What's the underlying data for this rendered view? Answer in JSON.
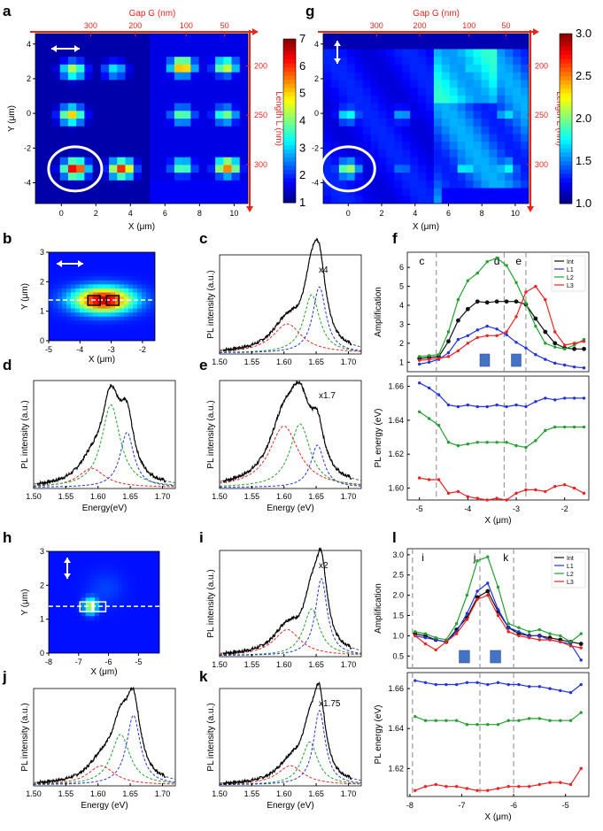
{
  "panel_letters": {
    "a": "a",
    "g": "g",
    "b": "b",
    "c": "c",
    "f": "f",
    "d": "d",
    "e": "e",
    "h": "h",
    "i": "i",
    "l": "l",
    "j": "j",
    "k": "k"
  },
  "colors": {
    "jet": [
      "#00007f",
      "#0000ff",
      "#007fff",
      "#00ffff",
      "#7fff7f",
      "#ffff00",
      "#ff7f00",
      "#ff0000",
      "#7f0000"
    ],
    "black": "#111111",
    "blue": "#2233dd",
    "green": "#22a030",
    "red": "#ee2222",
    "accent_red": "#e8251d",
    "highlight_blue": "#4472c4"
  },
  "chart_data": [
    {
      "id": "a",
      "type": "heatmap",
      "title": "",
      "xlabel": "X (μm)",
      "ylabel": "Y (μm)",
      "top_axis": {
        "label": "Gap G (nm)",
        "ticks": [
          "300",
          "200",
          "100",
          "50"
        ]
      },
      "right_axis": {
        "label": "Length L (nm)",
        "ticks": [
          "200",
          "250",
          "300"
        ]
      },
      "xticks": [
        "0",
        "2",
        "4",
        "6",
        "8",
        "10"
      ],
      "yticks": [
        "4",
        "2",
        "0",
        "-2",
        "-4"
      ],
      "xlim": [
        -1.5,
        10.8
      ],
      "ylim": [
        -5.2,
        4.6
      ],
      "colorbar": {
        "min": 1,
        "max": 7,
        "ticks": [
          "7",
          "6",
          "5",
          "4",
          "3",
          "2",
          "1"
        ]
      },
      "spots": [
        {
          "x": 0.8,
          "y": -3.2,
          "v": 6.5
        },
        {
          "x": 3.5,
          "y": -3.2,
          "v": 6.0
        },
        {
          "x": 0.6,
          "y": -0.1,
          "v": 5.0
        },
        {
          "x": 0.7,
          "y": 2.5,
          "v": 4.4
        },
        {
          "x": 3.1,
          "y": 2.5,
          "v": 3.2
        },
        {
          "x": 7.0,
          "y": 2.7,
          "v": 5.6
        },
        {
          "x": 9.5,
          "y": 2.7,
          "v": 4.6
        },
        {
          "x": 7.0,
          "y": -0.1,
          "v": 4.0
        },
        {
          "x": 9.5,
          "y": -0.1,
          "v": 4.0
        },
        {
          "x": 7.0,
          "y": -3.1,
          "v": 4.0
        },
        {
          "x": 9.6,
          "y": -3.1,
          "v": 5.6
        }
      ],
      "circle": {
        "x": 0.8,
        "y": -3.2
      }
    },
    {
      "id": "g",
      "type": "heatmap",
      "title": "",
      "xlabel": "X (μm)",
      "ylabel": "",
      "top_axis": {
        "label": "Gap G (nm)",
        "ticks": [
          "300",
          "200",
          "100",
          "50"
        ]
      },
      "right_axis": {
        "label": "Length L (nm)",
        "ticks": [
          "200",
          "250",
          "300"
        ]
      },
      "xticks": [
        "0",
        "2",
        "4",
        "6",
        "8",
        "10"
      ],
      "yticks": [
        "4",
        "2",
        "0",
        "-2",
        "-4"
      ],
      "xlim": [
        -1.5,
        10.8
      ],
      "ylim": [
        -5.2,
        4.6
      ],
      "colorbar": {
        "min": 1.0,
        "max": 3.0,
        "ticks": [
          "3.0",
          "2.5",
          "2.0",
          "1.5",
          "1.0"
        ]
      },
      "spots": [
        {
          "x": 0.0,
          "y": -3.2,
          "v": 2.1
        },
        {
          "x": 0.0,
          "y": -0.1,
          "v": 1.8
        },
        {
          "x": 3.2,
          "y": -0.1,
          "v": 1.6
        },
        {
          "x": 3.2,
          "y": -3.2,
          "v": 1.5
        },
        {
          "x": 7.2,
          "y": 2.7,
          "v": 1.7
        },
        {
          "x": 8.6,
          "y": 1.7,
          "v": 1.7
        },
        {
          "x": 9.5,
          "y": -0.1,
          "v": 1.7
        },
        {
          "x": 7.0,
          "y": -3.1,
          "v": 1.8
        },
        {
          "x": 9.5,
          "y": -3.1,
          "v": 1.8
        }
      ],
      "circle": {
        "x": 0.0,
        "y": -3.2
      }
    },
    {
      "id": "b",
      "type": "heatmap",
      "xlabel": "X (μm)",
      "ylabel": "Y (μm)",
      "xticks": [
        "-5",
        "-4",
        "-3",
        "-2"
      ],
      "yticks": [
        "3",
        "2",
        "1",
        "0"
      ],
      "xlim": [
        -5,
        -1.6
      ],
      "ylim": [
        0,
        3
      ],
      "spot": {
        "x": -3.25,
        "y": 1.38,
        "v": 0.95
      },
      "line_y": 1.38,
      "boxes": [
        {
          "x": -3.55,
          "y": 1.38
        },
        {
          "x": -2.95,
          "y": 1.38
        }
      ]
    },
    {
      "id": "h",
      "type": "heatmap",
      "xlabel": "X (μm)",
      "ylabel": "Y (μm)",
      "xticks": [
        "-8",
        "-7",
        "-6",
        "-5"
      ],
      "yticks": [
        "3",
        "2",
        "1",
        "0"
      ],
      "xlim": [
        -8,
        -4.3
      ],
      "ylim": [
        0,
        3
      ],
      "spot": {
        "x": -6.6,
        "y": 1.38,
        "v": 0.6
      },
      "line_y": 1.38,
      "boxes": [
        {
          "x": -6.75,
          "y": 1.38
        },
        {
          "x": -6.3,
          "y": 1.38
        }
      ]
    },
    {
      "id": "c",
      "type": "line",
      "xlabel": "",
      "ylabel": "PL intensity (a.u.)",
      "xticks": [
        "1.50",
        "1.55",
        "1.60",
        "1.65",
        "1.70"
      ],
      "xlim": [
        1.5,
        1.72
      ],
      "annotation": "x4",
      "peaks": [
        {
          "c": 1.605,
          "a": 0.3,
          "w": 0.055,
          "color": "red"
        },
        {
          "c": 1.643,
          "a": 0.6,
          "w": 0.03,
          "color": "green"
        },
        {
          "c": 1.655,
          "a": 0.68,
          "w": 0.025,
          "color": "blue"
        }
      ]
    },
    {
      "id": "d",
      "type": "line",
      "xlabel": "Energy(eV)",
      "ylabel": "PL intensity (a.u.)",
      "xticks": [
        "1.50",
        "1.55",
        "1.60",
        "1.65",
        "1.70"
      ],
      "xlim": [
        1.5,
        1.72
      ],
      "annotation": "",
      "peaks": [
        {
          "c": 1.59,
          "a": 0.18,
          "w": 0.05,
          "color": "red"
        },
        {
          "c": 1.62,
          "a": 0.78,
          "w": 0.035,
          "color": "green"
        },
        {
          "c": 1.645,
          "a": 0.52,
          "w": 0.026,
          "color": "blue"
        }
      ]
    },
    {
      "id": "e",
      "type": "line",
      "xlabel": "Energy (eV)",
      "ylabel": "PL intensity (a.u.)",
      "xticks": [
        "1.50",
        "1.55",
        "1.60",
        "1.65",
        "1.70"
      ],
      "xlim": [
        1.5,
        1.72
      ],
      "annotation": "x1.7",
      "peaks": [
        {
          "c": 1.6,
          "a": 0.58,
          "w": 0.055,
          "color": "red"
        },
        {
          "c": 1.625,
          "a": 0.6,
          "w": 0.038,
          "color": "green"
        },
        {
          "c": 1.652,
          "a": 0.4,
          "w": 0.025,
          "color": "blue"
        }
      ]
    },
    {
      "id": "i",
      "type": "line",
      "xlabel": "",
      "ylabel": "PL intensity (a.u.)",
      "xticks": [
        "1.50",
        "1.55",
        "1.60",
        "1.65",
        "1.70"
      ],
      "xlim": [
        1.5,
        1.72
      ],
      "annotation": "x2",
      "peaks": [
        {
          "c": 1.605,
          "a": 0.25,
          "w": 0.05,
          "color": "red"
        },
        {
          "c": 1.643,
          "a": 0.45,
          "w": 0.03,
          "color": "green"
        },
        {
          "c": 1.658,
          "a": 0.74,
          "w": 0.022,
          "color": "blue"
        }
      ]
    },
    {
      "id": "j",
      "type": "line",
      "xlabel": "Energy (eV)",
      "ylabel": "PL intensity (a.u.)",
      "xticks": [
        "1.50",
        "1.55",
        "1.60",
        "1.65",
        "1.70"
      ],
      "xlim": [
        1.5,
        1.72
      ],
      "annotation": "",
      "peaks": [
        {
          "c": 1.605,
          "a": 0.2,
          "w": 0.05,
          "color": "red"
        },
        {
          "c": 1.635,
          "a": 0.53,
          "w": 0.035,
          "color": "green"
        },
        {
          "c": 1.655,
          "a": 0.73,
          "w": 0.026,
          "color": "blue"
        }
      ]
    },
    {
      "id": "k",
      "type": "line",
      "xlabel": "Energy (eV)",
      "ylabel": "PL intensity (a.u.)",
      "xticks": [
        "1.50",
        "1.55",
        "1.60",
        "1.65",
        "1.70"
      ],
      "xlim": [
        1.5,
        1.72
      ],
      "annotation": "x1.75",
      "peaks": [
        {
          "c": 1.61,
          "a": 0.2,
          "w": 0.05,
          "color": "red"
        },
        {
          "c": 1.64,
          "a": 0.45,
          "w": 0.03,
          "color": "green"
        },
        {
          "c": 1.655,
          "a": 0.78,
          "w": 0.022,
          "color": "blue"
        }
      ]
    },
    {
      "id": "f_top",
      "type": "line",
      "xlabel": "",
      "ylabel": "Amplification",
      "yticks": [
        "1",
        "2",
        "3",
        "4",
        "5",
        "6"
      ],
      "ylim": [
        0.5,
        6.8
      ],
      "xlim": [
        -5.25,
        -1.5
      ],
      "x": [
        -5.0,
        -4.8,
        -4.6,
        -4.4,
        -4.2,
        -4.0,
        -3.8,
        -3.6,
        -3.4,
        -3.2,
        -3.0,
        -2.8,
        -2.6,
        -2.4,
        -2.2,
        -2.0,
        -1.8,
        -1.6
      ],
      "series": [
        {
          "name": "Int",
          "color": "black",
          "values": [
            1.2,
            1.25,
            1.3,
            2.1,
            3.2,
            3.8,
            4.2,
            4.15,
            4.2,
            4.2,
            4.2,
            4.05,
            3.3,
            2.6,
            2.0,
            1.75,
            1.7,
            1.7
          ]
        },
        {
          "name": "L1",
          "color": "blue",
          "values": [
            0.9,
            1.0,
            1.15,
            1.5,
            2.2,
            2.4,
            2.7,
            2.9,
            2.75,
            2.45,
            2.05,
            1.75,
            1.4,
            1.15,
            0.95,
            0.85,
            0.75,
            0.7
          ]
        },
        {
          "name": "L2",
          "color": "green",
          "values": [
            1.3,
            1.35,
            1.4,
            2.6,
            4.3,
            5.3,
            5.7,
            6.3,
            6.5,
            6.1,
            5.2,
            4.1,
            2.9,
            2.0,
            1.8,
            1.7,
            1.9,
            2.2
          ]
        },
        {
          "name": "L3",
          "color": "red",
          "values": [
            1.1,
            1.15,
            1.2,
            1.3,
            1.6,
            2.0,
            2.3,
            2.4,
            2.4,
            2.6,
            3.4,
            4.7,
            5.0,
            4.3,
            2.6,
            1.9,
            2.0,
            2.1
          ]
        }
      ],
      "labels": [
        {
          "text": "c",
          "x": -4.95
        },
        {
          "text": "d",
          "x": -3.4
        },
        {
          "text": "e",
          "x": -2.95
        }
      ],
      "dashed_x": [
        -4.65,
        -3.25,
        -2.8
      ],
      "blocks": [
        {
          "x0": -3.75,
          "x1": -3.55
        },
        {
          "x0": -3.1,
          "x1": -2.9
        }
      ]
    },
    {
      "id": "f_bottom",
      "type": "line",
      "xlabel": "X (μm)",
      "ylabel": "PL energy (eV)",
      "xticks": [
        "-5",
        "-4",
        "-3",
        "-2"
      ],
      "yticks": [
        "1.60",
        "1.62",
        "1.64",
        "1.66"
      ],
      "xlim": [
        -5.25,
        -1.5
      ],
      "ylim": [
        1.593,
        1.666
      ],
      "x": [
        -5.0,
        -4.8,
        -4.6,
        -4.4,
        -4.2,
        -4.0,
        -3.8,
        -3.6,
        -3.4,
        -3.2,
        -3.0,
        -2.8,
        -2.6,
        -2.4,
        -2.2,
        -2.0,
        -1.8,
        -1.6
      ],
      "series": [
        {
          "name": "L1",
          "color": "blue",
          "values": [
            1.662,
            1.659,
            1.655,
            1.649,
            1.648,
            1.649,
            1.648,
            1.648,
            1.649,
            1.648,
            1.649,
            1.648,
            1.651,
            1.653,
            1.652,
            1.653,
            1.653,
            1.653
          ]
        },
        {
          "name": "L2",
          "color": "green",
          "values": [
            1.645,
            1.641,
            1.637,
            1.627,
            1.625,
            1.626,
            1.627,
            1.627,
            1.627,
            1.627,
            1.625,
            1.624,
            1.628,
            1.634,
            1.636,
            1.636,
            1.636,
            1.636
          ]
        },
        {
          "name": "L3",
          "color": "red",
          "values": [
            1.606,
            1.605,
            1.605,
            1.597,
            1.598,
            1.595,
            1.594,
            1.593,
            1.594,
            1.593,
            1.597,
            1.599,
            1.599,
            1.598,
            1.601,
            1.602,
            1.6,
            1.597
          ]
        }
      ],
      "dashed_x": [
        -4.65,
        -3.25,
        -2.8
      ]
    },
    {
      "id": "l_top",
      "type": "line",
      "xlabel": "",
      "ylabel": "Amplification",
      "yticks": [
        "0.5",
        "1.0",
        "1.5",
        "2.0",
        "2.5",
        "3.0"
      ],
      "ylim": [
        0.2,
        3.15
      ],
      "xlim": [
        -8.05,
        -4.55
      ],
      "x": [
        -7.9,
        -7.7,
        -7.5,
        -7.3,
        -7.1,
        -6.9,
        -6.7,
        -6.5,
        -6.3,
        -6.1,
        -5.9,
        -5.7,
        -5.5,
        -5.3,
        -5.1,
        -4.9,
        -4.7
      ],
      "series": [
        {
          "name": "Int",
          "color": "black",
          "values": [
            1.05,
            1.0,
            0.9,
            0.85,
            1.15,
            1.45,
            1.95,
            2.1,
            1.6,
            1.2,
            1.05,
            1.0,
            1.0,
            0.95,
            0.9,
            0.85,
            0.8
          ]
        },
        {
          "name": "L1",
          "color": "blue",
          "values": [
            1.0,
            0.95,
            0.9,
            0.85,
            1.1,
            1.55,
            2.1,
            2.3,
            1.65,
            1.2,
            1.1,
            1.0,
            1.0,
            0.9,
            0.85,
            0.8,
            0.4
          ]
        },
        {
          "name": "L2",
          "color": "green",
          "values": [
            1.1,
            1.05,
            0.95,
            0.9,
            1.3,
            2.0,
            2.85,
            2.95,
            2.2,
            1.3,
            1.2,
            1.1,
            1.15,
            1.05,
            1.0,
            0.85,
            1.05
          ]
        },
        {
          "name": "L3",
          "color": "red",
          "values": [
            1.0,
            0.8,
            0.65,
            0.85,
            1.05,
            1.4,
            1.9,
            2.0,
            1.5,
            1.1,
            1.0,
            0.95,
            0.9,
            0.9,
            0.85,
            0.75,
            0.7
          ]
        }
      ],
      "labels": [
        {
          "text": "i",
          "x": -7.75
        },
        {
          "text": "j",
          "x": -6.75
        },
        {
          "text": "k",
          "x": -6.15
        }
      ],
      "dashed_x": [
        -7.95,
        -6.65,
        -6.0
      ],
      "blocks": [
        {
          "x0": -7.05,
          "x1": -6.85
        },
        {
          "x0": -6.45,
          "x1": -6.25
        }
      ]
    },
    {
      "id": "l_bottom",
      "type": "line",
      "xlabel": "X (μm)",
      "ylabel": "PL energy (eV)",
      "xticks": [
        "-8",
        "-7",
        "-6",
        "-5"
      ],
      "yticks": [
        "1.62",
        "1.64",
        "1.66"
      ],
      "xlim": [
        -8.05,
        -4.55
      ],
      "ylim": [
        1.606,
        1.668
      ],
      "x": [
        -7.9,
        -7.7,
        -7.5,
        -7.3,
        -7.1,
        -6.9,
        -6.7,
        -6.5,
        -6.3,
        -6.1,
        -5.9,
        -5.7,
        -5.5,
        -5.3,
        -5.1,
        -4.9,
        -4.7
      ],
      "series": [
        {
          "name": "L1",
          "color": "blue",
          "values": [
            1.664,
            1.663,
            1.662,
            1.662,
            1.662,
            1.663,
            1.663,
            1.662,
            1.663,
            1.662,
            1.662,
            1.661,
            1.661,
            1.66,
            1.659,
            1.658,
            1.662
          ]
        },
        {
          "name": "L2",
          "color": "green",
          "values": [
            1.646,
            1.644,
            1.644,
            1.644,
            1.644,
            1.642,
            1.642,
            1.642,
            1.642,
            1.644,
            1.644,
            1.645,
            1.645,
            1.644,
            1.644,
            1.644,
            1.648
          ]
        },
        {
          "name": "L3",
          "color": "red",
          "values": [
            1.609,
            1.611,
            1.612,
            1.611,
            1.611,
            1.61,
            1.609,
            1.609,
            1.61,
            1.611,
            1.611,
            1.611,
            1.612,
            1.613,
            1.613,
            1.612,
            1.62
          ]
        }
      ],
      "dashed_x": [
        -7.95,
        -6.65,
        -6.0
      ]
    }
  ],
  "legend": [
    "Int",
    "L1",
    "L2",
    "L3"
  ]
}
